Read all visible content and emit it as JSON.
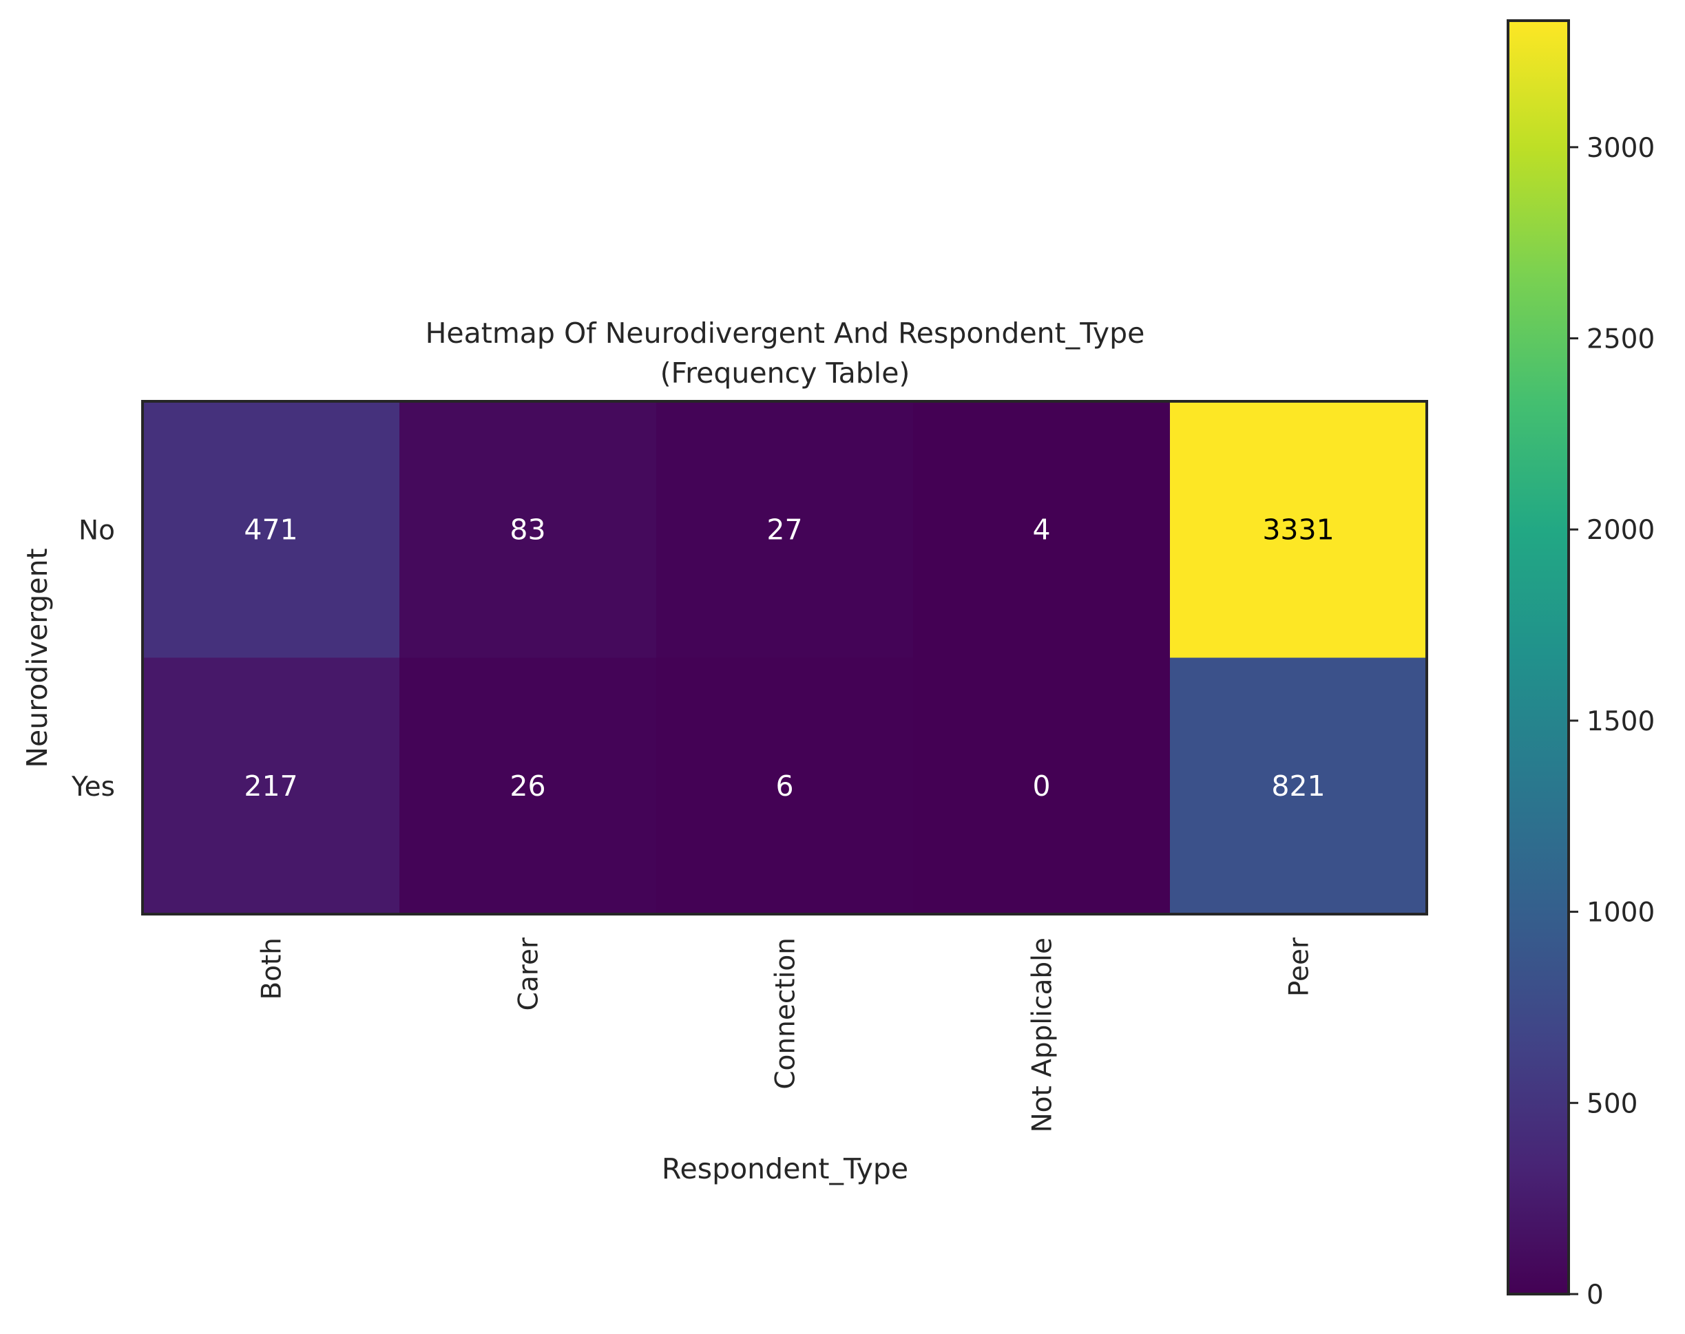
{
  "chart_data": {
    "type": "heatmap",
    "title": "Heatmap Of Neurodivergent And Respondent_Type",
    "subtitle": "(Frequency Table)",
    "xlabel": "Respondent_Type",
    "ylabel": "Neurodivergent",
    "x_categories": [
      "Both",
      "Carer",
      "Connection",
      "Not Applicable",
      "Peer"
    ],
    "y_categories": [
      "No",
      "Yes"
    ],
    "values": [
      [
        471,
        83,
        27,
        4,
        3331
      ],
      [
        217,
        26,
        6,
        0,
        821
      ]
    ],
    "colormap": "viridis",
    "vmin": 0,
    "vmax": 3331,
    "colorbar_ticks": [
      0,
      500,
      1000,
      1500,
      2000,
      2500,
      3000
    ],
    "colorbar_tick_labels": [
      "0",
      "500",
      "1000",
      "1500",
      "2000",
      "2500",
      "3000"
    ],
    "grid": false,
    "annotation_color_light": "#ffffff",
    "annotation_color_dark": "#000000",
    "frame_color": "#262626"
  }
}
